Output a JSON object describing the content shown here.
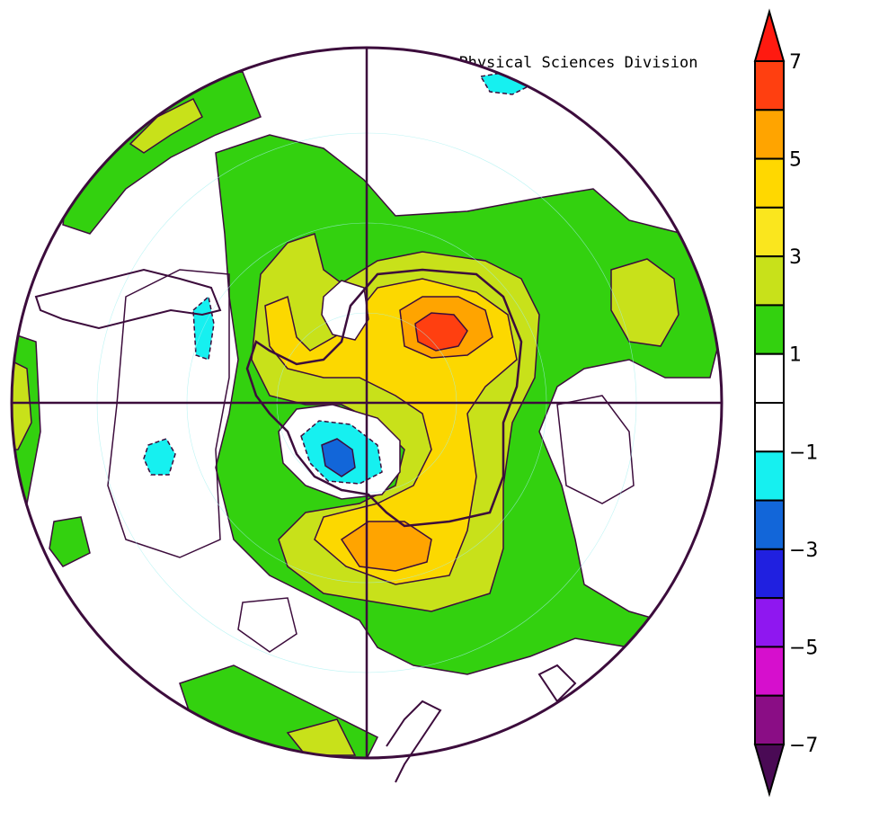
{
  "credit": "NOAA/ESRL Physical Sciences Division",
  "colorbar": {
    "labels": [
      "7",
      "5",
      "3",
      "1",
      "−1",
      "−3",
      "−5",
      "−7"
    ],
    "bins_top_to_bottom": [
      {
        "color": "#ff1a10"
      },
      {
        "color": "#ff3f10"
      },
      {
        "color": "#ffa400"
      },
      {
        "color": "#ffd800"
      },
      {
        "color": "#fae61e"
      },
      {
        "color": "#c8e11a"
      },
      {
        "color": "#33d10f"
      },
      {
        "color": "#ffffff"
      },
      {
        "color": "#ffffff"
      },
      {
        "color": "#16f0f0"
      },
      {
        "color": "#1266d9"
      },
      {
        "color": "#2020e0"
      },
      {
        "color": "#8f17f0"
      },
      {
        "color": "#d60fcd"
      },
      {
        "color": "#8a0d85"
      },
      {
        "color": "#4a0a55"
      }
    ]
  },
  "map": {
    "projection": "polar-stereographic",
    "hemisphere": "south",
    "outline_color": "#3c0c3c",
    "colors": {
      "green": "#33d10f",
      "olive": "#c8e11a",
      "yellow": "#fcd800",
      "orange": "#ffa400",
      "red": "#ff3f10",
      "cyan": "#16f0f0",
      "blue": "#1266d9",
      "white": "#ffffff"
    }
  }
}
